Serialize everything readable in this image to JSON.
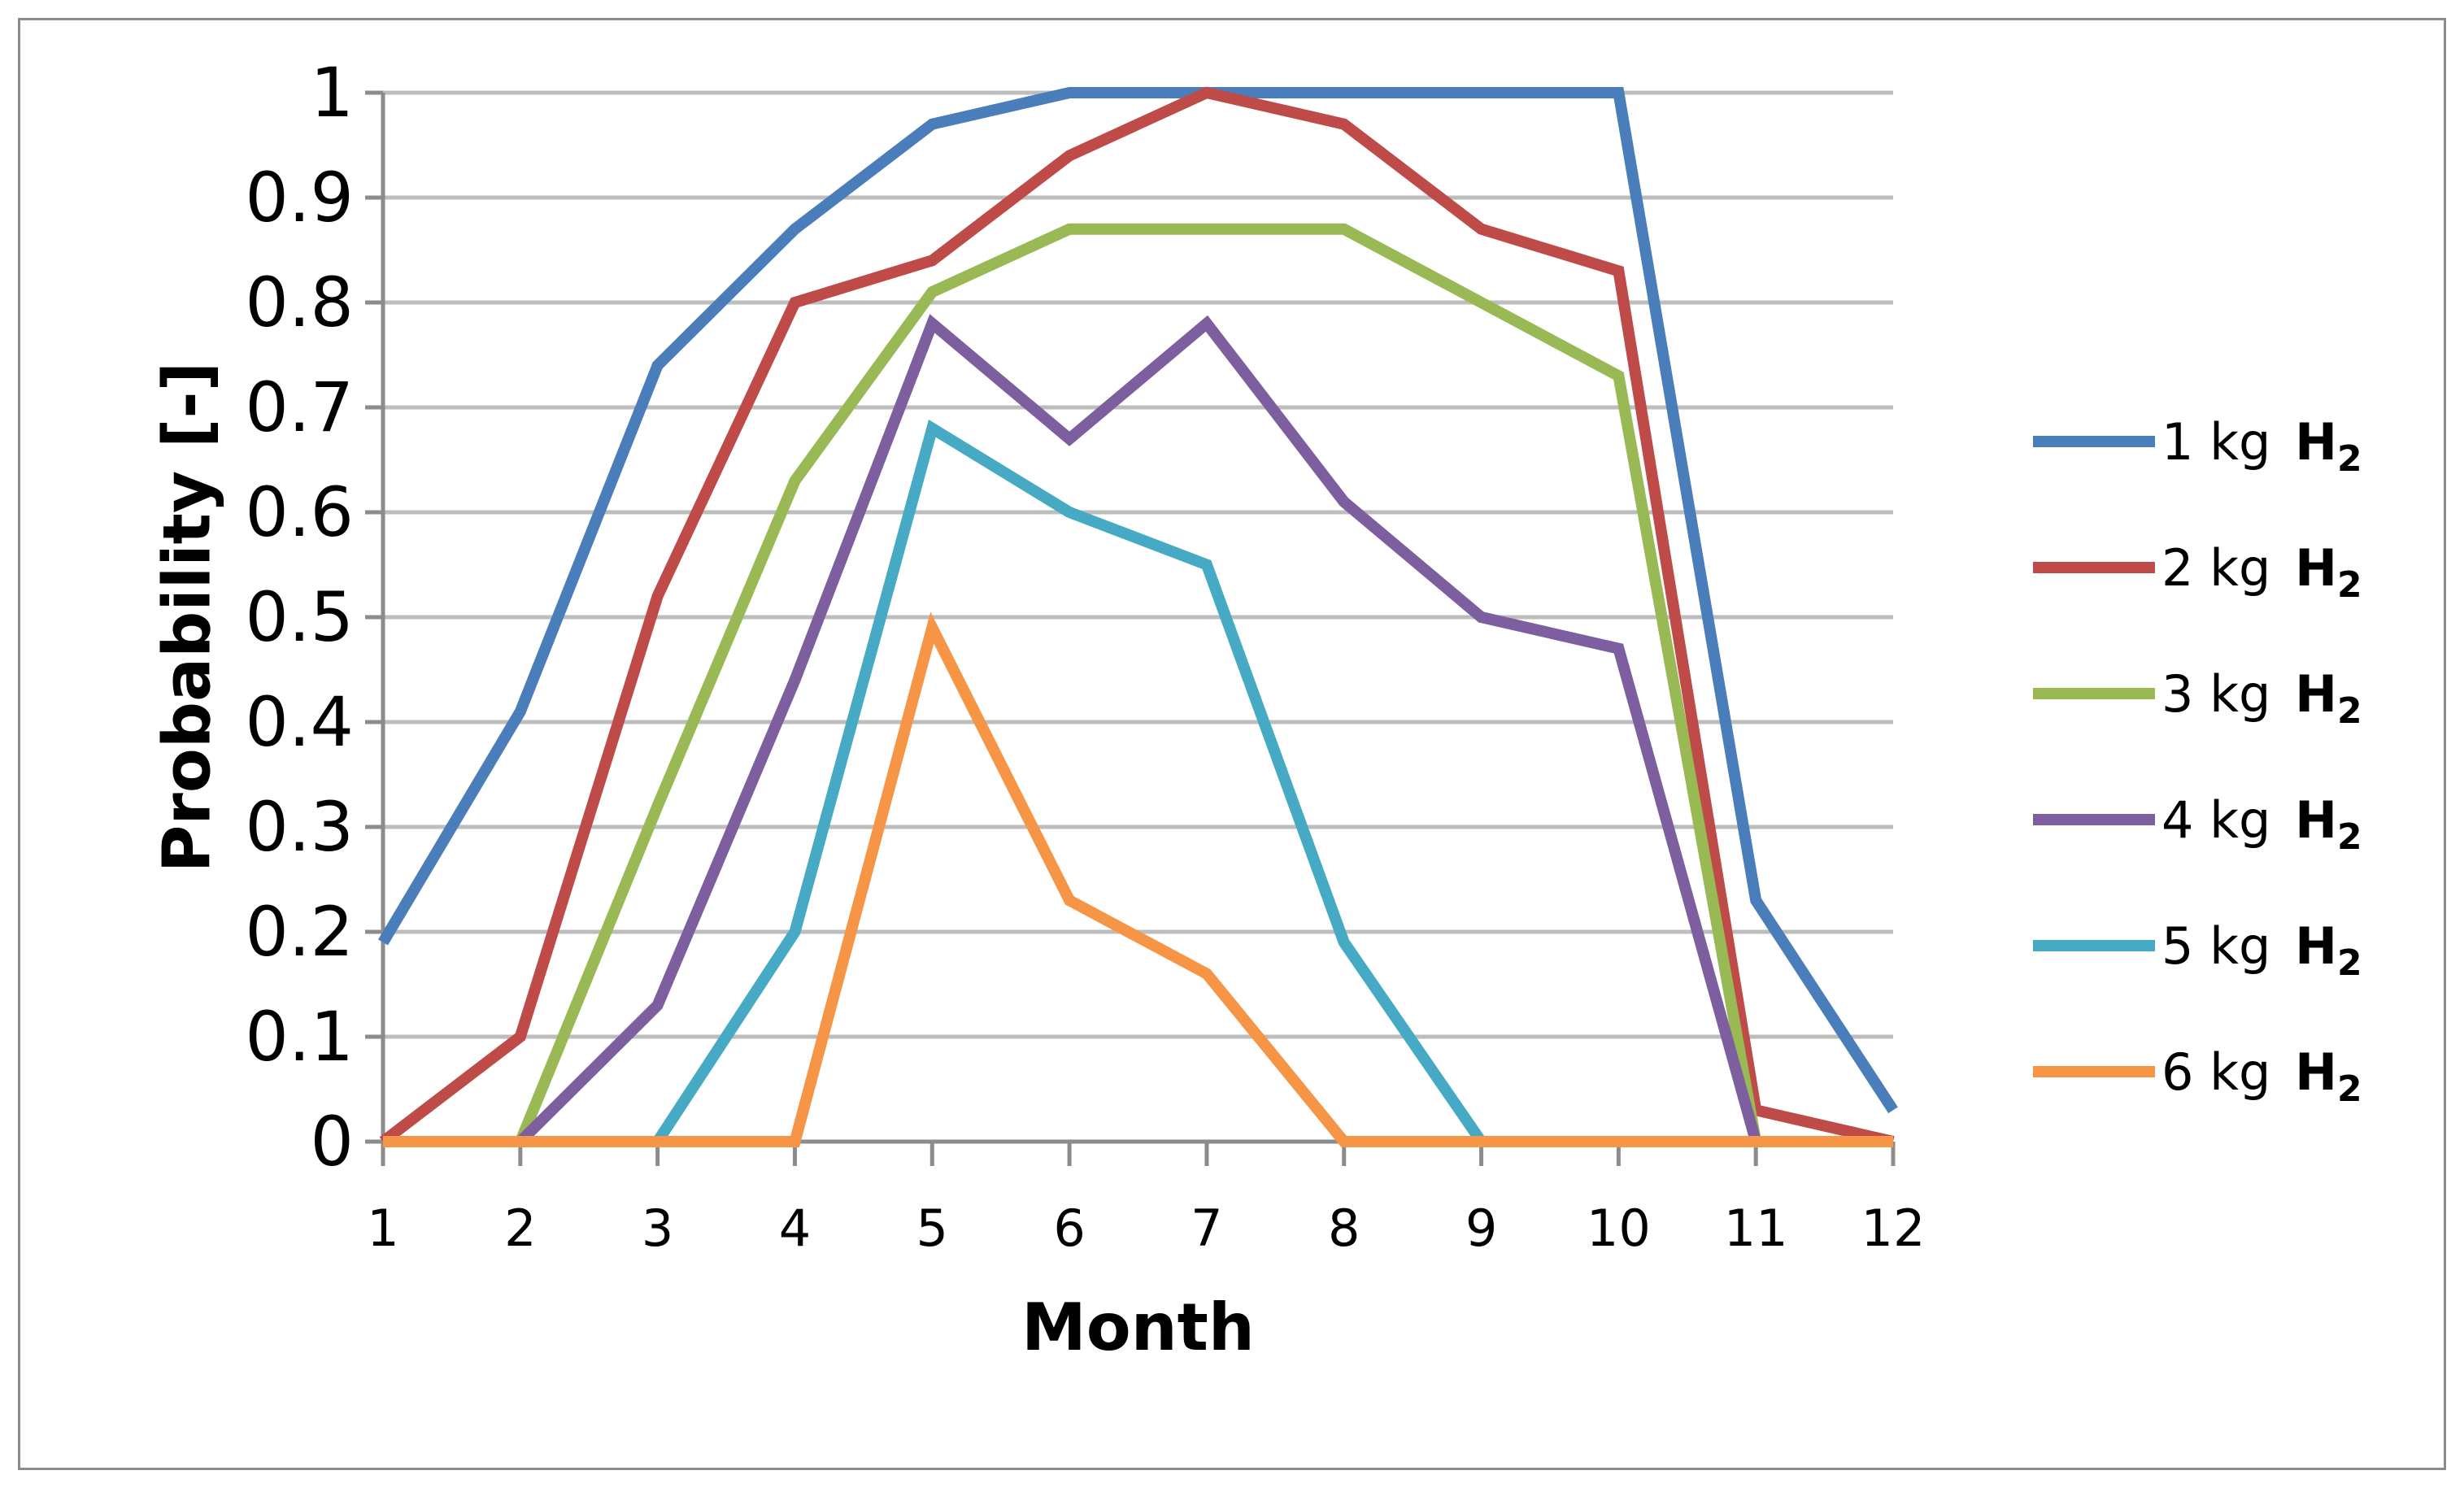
{
  "chart_data": {
    "type": "line",
    "title": "",
    "xlabel": "Month",
    "ylabel": "Probability [-]",
    "x": [
      1,
      2,
      3,
      4,
      5,
      6,
      7,
      8,
      9,
      10,
      11,
      12
    ],
    "xticks": [
      "1",
      "2",
      "3",
      "4",
      "5",
      "6",
      "7",
      "8",
      "9",
      "10",
      "11",
      "12"
    ],
    "ylim": [
      0,
      1
    ],
    "yticks": [
      {
        "value": 0,
        "label": "0"
      },
      {
        "value": 0.1,
        "label": "0.1"
      },
      {
        "value": 0.2,
        "label": "0.2"
      },
      {
        "value": 0.3,
        "label": "0.3"
      },
      {
        "value": 0.4,
        "label": "0.4"
      },
      {
        "value": 0.5,
        "label": "0.5"
      },
      {
        "value": 0.6,
        "label": "0.6"
      },
      {
        "value": 0.7,
        "label": "0.7"
      },
      {
        "value": 0.8,
        "label": "0.8"
      },
      {
        "value": 0.9,
        "label": "0.9"
      },
      {
        "value": 1,
        "label": "1"
      }
    ],
    "grid": true,
    "legend_position": "right",
    "series": [
      {
        "name": "1 kg H2",
        "label": "1 kg ",
        "chem": "H",
        "sub": "2",
        "color": "#4a7ebb",
        "values": [
          0.19,
          0.41,
          0.74,
          0.87,
          0.97,
          1.0,
          1.0,
          1.0,
          1.0,
          1.0,
          0.23,
          0.03
        ]
      },
      {
        "name": "2 kg H2",
        "label": "2 kg ",
        "chem": "H",
        "sub": "2",
        "color": "#be4b48",
        "values": [
          0.0,
          0.1,
          0.52,
          0.8,
          0.84,
          0.94,
          1.0,
          0.97,
          0.87,
          0.83,
          0.03,
          0.0
        ]
      },
      {
        "name": "3 kg H2",
        "label": "3 kg ",
        "chem": "H",
        "sub": "2",
        "color": "#98b954",
        "values": [
          null,
          0.0,
          0.32,
          0.63,
          0.81,
          0.87,
          0.87,
          0.87,
          0.8,
          0.73,
          0.0,
          null
        ]
      },
      {
        "name": "4 kg H2",
        "label": "4 kg ",
        "chem": "H",
        "sub": "2",
        "color": "#7d5fa0",
        "values": [
          null,
          0.0,
          0.13,
          0.44,
          0.78,
          0.67,
          0.78,
          0.61,
          0.5,
          0.47,
          0.0,
          null
        ]
      },
      {
        "name": "5 kg H2",
        "label": "5 kg ",
        "chem": "H",
        "sub": "2",
        "color": "#46aac5",
        "values": [
          null,
          null,
          0.0,
          0.2,
          0.68,
          0.6,
          0.55,
          0.19,
          0.0,
          null,
          null,
          null
        ]
      },
      {
        "name": "6 kg H2",
        "label": "6 kg ",
        "chem": "H",
        "sub": "2",
        "color": "#f69545",
        "values": [
          0.0,
          0.0,
          0.0,
          0.0,
          0.49,
          0.23,
          0.16,
          0.0,
          0.0,
          0.0,
          0.0,
          0.0
        ]
      }
    ]
  }
}
